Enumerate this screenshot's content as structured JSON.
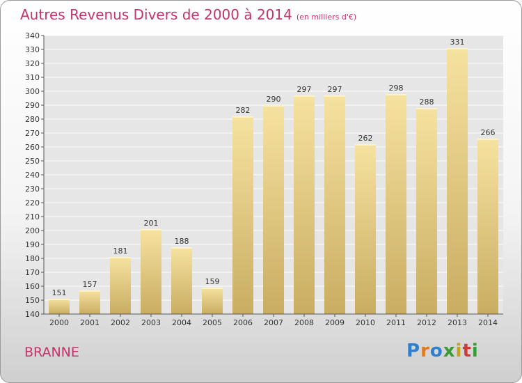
{
  "header": {
    "title": "Autres Revenus Divers de 2000 à 2014",
    "subtitle": "(en milliers d'€)"
  },
  "footer": {
    "city": "BRANNE",
    "brand_letters": [
      "P",
      "r",
      "o",
      "x",
      "i",
      "t",
      "i"
    ],
    "brand_colors": [
      "#2e7fd0",
      "#e07a1f",
      "#2e7fd0",
      "#3a9a35",
      "#c8a11c",
      "#d23a3a",
      "#3a9a35"
    ]
  },
  "colors": {
    "title": "#c4336b",
    "bar_top": "#f6e2a0",
    "bar_bottom": "#c9ad62",
    "grid": "#ffffff"
  },
  "chart_data": {
    "type": "bar",
    "categories": [
      "2000",
      "2001",
      "2002",
      "2003",
      "2004",
      "2005",
      "2006",
      "2007",
      "2008",
      "2009",
      "2010",
      "2011",
      "2012",
      "2013",
      "2014"
    ],
    "values": [
      151,
      157,
      181,
      201,
      188,
      159,
      282,
      290,
      297,
      297,
      262,
      298,
      288,
      331,
      266
    ],
    "ylim": [
      140,
      340
    ],
    "ytick_step": 10,
    "grid": true,
    "data_labels": true
  }
}
